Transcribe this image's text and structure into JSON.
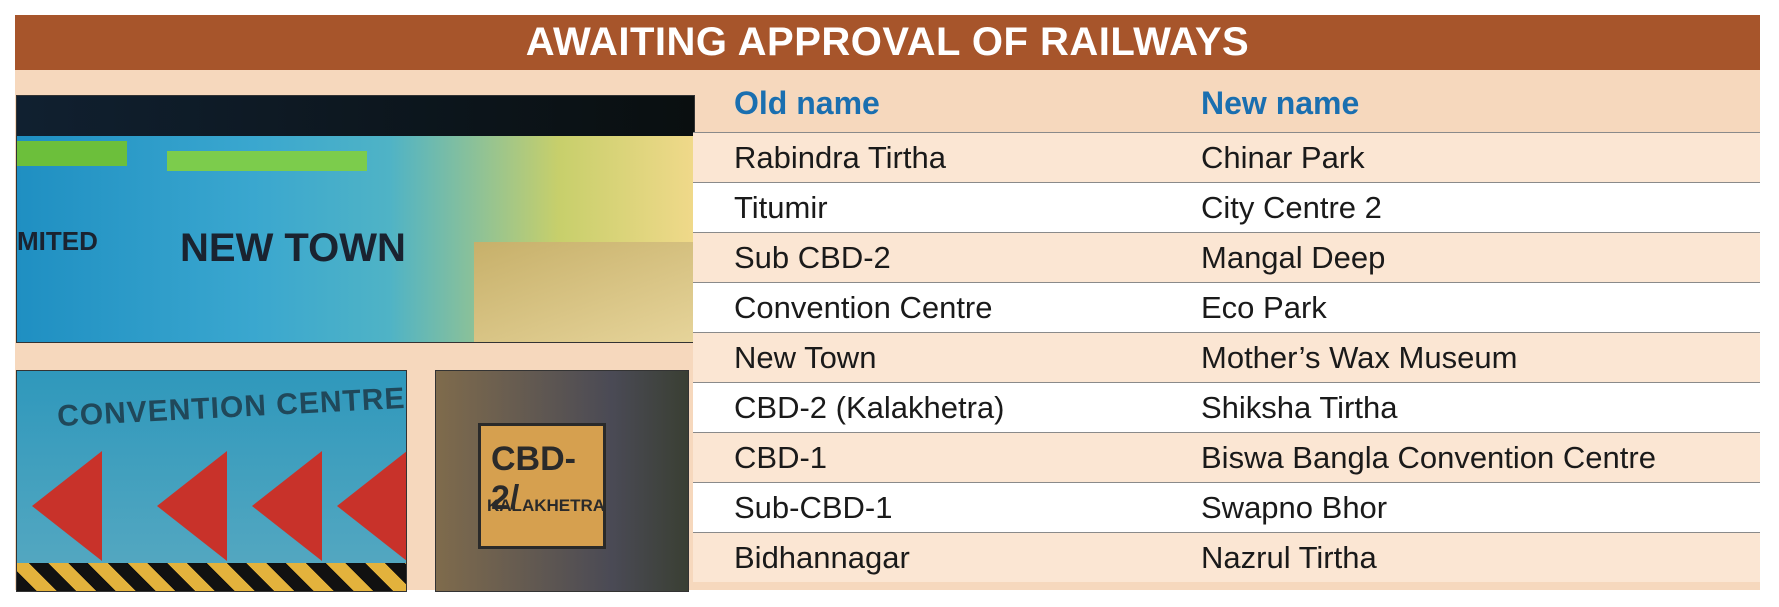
{
  "header": {
    "title": "AWAITING APPROVAL OF RAILWAYS"
  },
  "photos": {
    "top": {
      "sign_text": "NEW TOWN",
      "sign_text_left": "MITED"
    },
    "bottom_left": {
      "sign_text": "CONVENTION CENTRE"
    },
    "bottom_right": {
      "plate_line1": "CBD-2/",
      "plate_line2": "KALAKHETRA"
    }
  },
  "table": {
    "headers": {
      "old": "Old name",
      "new": "New name"
    },
    "rows": [
      {
        "old": "Rabindra Tirtha",
        "new": "Chinar Park"
      },
      {
        "old": "Titumir",
        "new": "City Centre 2"
      },
      {
        "old": "Sub CBD-2",
        "new": "Mangal Deep"
      },
      {
        "old": "Convention Centre",
        "new": "Eco Park"
      },
      {
        "old": "New Town",
        "new": "Mother’s Wax Museum"
      },
      {
        "old": "CBD-2 (Kalakhetra)",
        "new": "Shiksha Tirtha"
      },
      {
        "old": "CBD-1",
        "new": "Biswa Bangla Convention Centre"
      },
      {
        "old": "Sub-CBD-1",
        "new": "Swapno Bhor"
      },
      {
        "old": "Bidhannagar",
        "new": "Nazrul Tirtha"
      }
    ]
  },
  "colors": {
    "header_bg": "#a7552b",
    "panel_bg": "#f6d8bd",
    "heading_blue": "#1a6fb0"
  }
}
